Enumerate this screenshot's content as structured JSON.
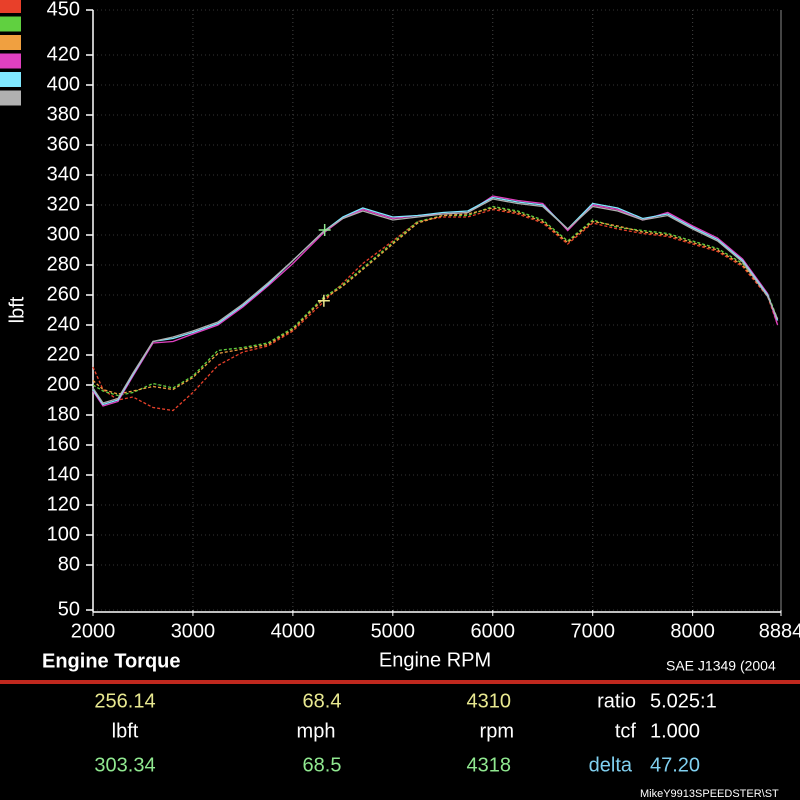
{
  "chart_data": {
    "type": "line",
    "title": "Engine Torque",
    "x_label": "Engine RPM",
    "y_label": "lbft",
    "standard": "SAE J1349 (2004",
    "x": [
      2000,
      2100,
      2250,
      2400,
      2600,
      2800,
      3000,
      3250,
      3500,
      3750,
      4000,
      4300,
      4500,
      4700,
      5000,
      5250,
      5500,
      5750,
      6000,
      6250,
      6500,
      6750,
      7000,
      7250,
      7500,
      7750,
      8000,
      8250,
      8500,
      8750,
      8850
    ],
    "series": [
      {
        "color": "#e8402a",
        "style": "dashed",
        "values": [
          212,
          197,
          190,
          192,
          185,
          183,
          195,
          213,
          222,
          226,
          236,
          255,
          268,
          281,
          296,
          309,
          312,
          312,
          317,
          314,
          308,
          294,
          308,
          304,
          301,
          299,
          294,
          289,
          279,
          259,
          240
        ]
      },
      {
        "color": "#60d040",
        "style": "dashed",
        "values": [
          200,
          196,
          193,
          195,
          201,
          198,
          206,
          223,
          225,
          228,
          238,
          258,
          267,
          278,
          295,
          309,
          313,
          313,
          319,
          316,
          310,
          296,
          310,
          305,
          303,
          301,
          296,
          291,
          281,
          261,
          244
        ]
      },
      {
        "color": "#f0a040",
        "style": "dashed",
        "values": [
          203,
          197,
          194,
          196,
          199,
          197,
          205,
          221,
          224,
          227,
          237,
          257,
          266,
          277,
          294,
          308,
          313,
          314,
          318,
          315,
          309,
          295,
          309,
          306,
          302,
          300,
          295,
          290,
          280,
          260,
          243
        ]
      },
      {
        "color": "#e040c0",
        "style": "solid",
        "values": [
          196,
          186,
          189,
          206,
          228,
          229,
          234,
          240,
          252,
          266,
          281,
          301,
          311,
          317,
          311,
          313,
          314,
          315,
          326,
          323,
          321,
          303,
          320,
          317,
          310,
          315,
          306,
          298,
          284,
          261,
          240
        ]
      },
      {
        "color": "#80e8ff",
        "style": "solid",
        "values": [
          197,
          187,
          190,
          207,
          229,
          231,
          235,
          241,
          253,
          267,
          283,
          302,
          312,
          318,
          312,
          313,
          315,
          316,
          325,
          322,
          320,
          304,
          321,
          318,
          311,
          314,
          305,
          297,
          283,
          260,
          243
        ]
      },
      {
        "color": "#b0b0b0",
        "style": "solid",
        "values": [
          198,
          188,
          191,
          208,
          229,
          232,
          236,
          242,
          254,
          268,
          283,
          302,
          311,
          316,
          310,
          312,
          314,
          315,
          324,
          321,
          319,
          304,
          319,
          316,
          310,
          313,
          304,
          296,
          282,
          259,
          244
        ]
      }
    ],
    "xlim": [
      2000,
      8884
    ],
    "xticks": [
      2000,
      3000,
      4000,
      5000,
      6000,
      7000,
      8000,
      8884
    ],
    "ylim": [
      50,
      450
    ],
    "yticks": [
      50,
      80,
      100,
      120,
      140,
      160,
      180,
      200,
      220,
      240,
      260,
      280,
      300,
      320,
      340,
      360,
      380,
      400,
      420,
      450
    ],
    "grid": true,
    "markers": [
      {
        "x": 4310,
        "y": 256.14,
        "mph": 68.4,
        "color": "#e8e890"
      },
      {
        "x": 4318,
        "y": 303.34,
        "mph": 68.5,
        "color": "#90e890"
      }
    ],
    "readout": {
      "y_unit": "lbft",
      "speed_unit": "mph",
      "x_unit": "rpm",
      "ratio_label": "ratio",
      "ratio": "5.025:1",
      "tcf_label": "tcf",
      "tcf": "1.000",
      "delta_label": "delta",
      "delta": "47.20"
    },
    "footer": "MikeY9913SPEEDSTER\\ST"
  }
}
